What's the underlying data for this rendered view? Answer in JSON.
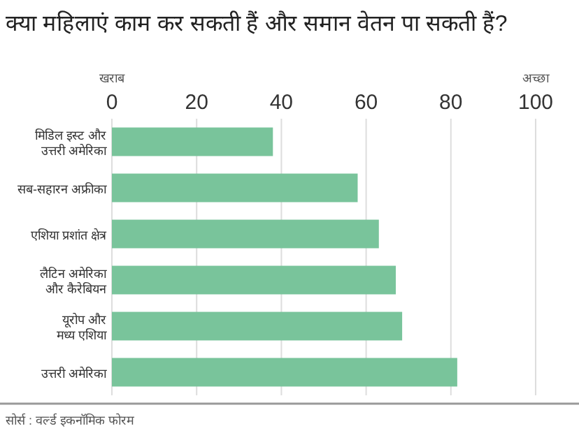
{
  "chart_data": {
    "type": "bar",
    "orientation": "horizontal",
    "title": "क्या महिलाएं काम कर सकती हैं और समान वेतन पा सकती हैं?",
    "categories": [
      "मिडिल इस्ट और\nउत्तरी अमेरिका",
      "सब-सहारन अफ्रीका",
      "एशिया प्रशांत क्षेत्र",
      "लैटिन अमेरिका\nऔर कैरेबियन",
      "यूरोप और\nमध्य एशिया",
      "उत्तरी अमेरिका"
    ],
    "values": [
      38,
      58,
      63,
      67,
      68.5,
      81.5
    ],
    "color": "#79c49b",
    "xlim": [
      0,
      100
    ],
    "xticks": [
      0,
      20,
      40,
      60,
      80,
      100
    ],
    "grid": "x",
    "annotations": [
      "खराब",
      "अच्छा",
      "सोर्स : वर्ल्ड इकनॉमिक फोरम"
    ]
  }
}
